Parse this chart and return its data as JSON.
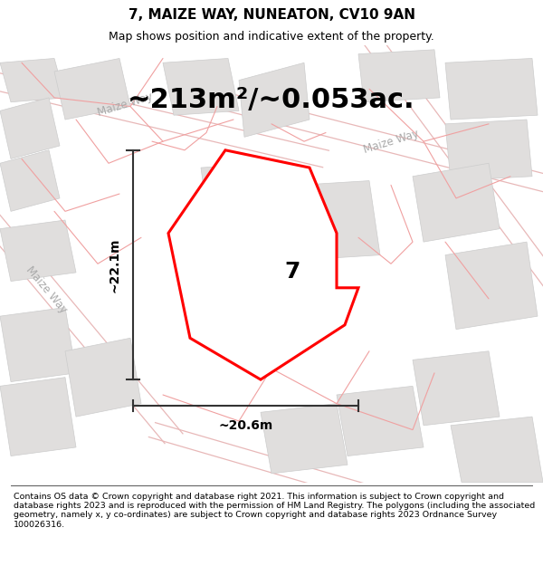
{
  "title": "7, MAIZE WAY, NUNEATON, CV10 9AN",
  "subtitle": "Map shows position and indicative extent of the property.",
  "area_text": "~213m²/~0.053ac.",
  "plot_number": "7",
  "width_label": "~20.6m",
  "height_label": "~22.1m",
  "footer": "Contains OS data © Crown copyright and database right 2021. This information is subject to Crown copyright and database rights 2023 and is reproduced with the permission of HM Land Registry. The polygons (including the associated geometry, namely x, y co-ordinates) are subject to Crown copyright and database rights 2023 Ordnance Survey 100026316.",
  "bg_color": "#ffffff",
  "map_bg": "#f5f3f3",
  "road_outline_color": "#e8b8b8",
  "road_label_color": "#aaaaaa",
  "building_face_color": "#e0dedd",
  "building_edge_color": "#cccccc",
  "plot_color": "#ff0000",
  "plot_fill": "#ffffff",
  "title_fontsize": 11,
  "subtitle_fontsize": 9,
  "area_fontsize": 22,
  "footer_fontsize": 6.8,
  "dim_line_color": "#333333",
  "dim_fontsize": 10,
  "plot_label_fontsize": 18,
  "road_label_fontsize": 8.5
}
